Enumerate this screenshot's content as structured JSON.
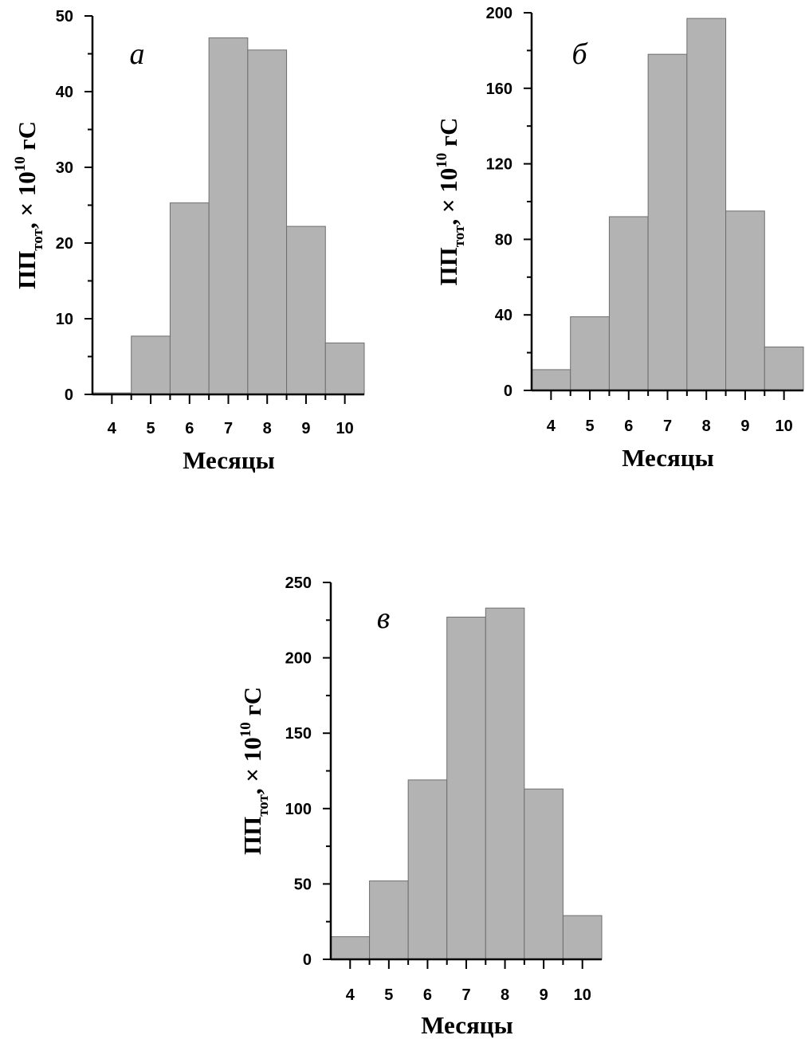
{
  "chart_data": [
    {
      "type": "bar",
      "panel_label": "а",
      "categories": [
        "4",
        "5",
        "6",
        "7",
        "8",
        "9",
        "10"
      ],
      "values": [
        0.2,
        7.7,
        25.3,
        47.1,
        45.5,
        22.2,
        6.8
      ],
      "ylim": [
        0,
        50
      ],
      "yticks": [
        0,
        10,
        20,
        30,
        40,
        50
      ],
      "xlabel": "Месяцы",
      "ylabel": {
        "main": "ПП",
        "sub": "тот",
        "mid": ", × 10",
        "sup": "10",
        "unit": " гС"
      },
      "bar_color": "#b3b3b3",
      "grid": false
    },
    {
      "type": "bar",
      "panel_label": "б",
      "categories": [
        "4",
        "5",
        "6",
        "7",
        "8",
        "9",
        "10"
      ],
      "values": [
        11,
        39,
        92,
        178,
        197,
        95,
        23
      ],
      "ylim": [
        0,
        200
      ],
      "yticks": [
        0,
        40,
        80,
        120,
        160,
        200
      ],
      "xlabel": "Месяцы",
      "ylabel": {
        "main": "ПП",
        "sub": "тот",
        "mid": ", × 10",
        "sup": "10",
        "unit": " гС"
      },
      "bar_color": "#b3b3b3",
      "grid": false
    },
    {
      "type": "bar",
      "panel_label": "в",
      "categories": [
        "4",
        "5",
        "6",
        "7",
        "8",
        "9",
        "10"
      ],
      "values": [
        15,
        52,
        119,
        227,
        233,
        113,
        29
      ],
      "ylim": [
        0,
        250
      ],
      "yticks": [
        0,
        50,
        100,
        150,
        200,
        250
      ],
      "xlabel": "Месяцы",
      "ylabel": {
        "main": "ПП",
        "sub": "тот",
        "mid": ", × 10",
        "sup": "10",
        "unit": " гС"
      },
      "bar_color": "#b3b3b3",
      "grid": false
    }
  ]
}
